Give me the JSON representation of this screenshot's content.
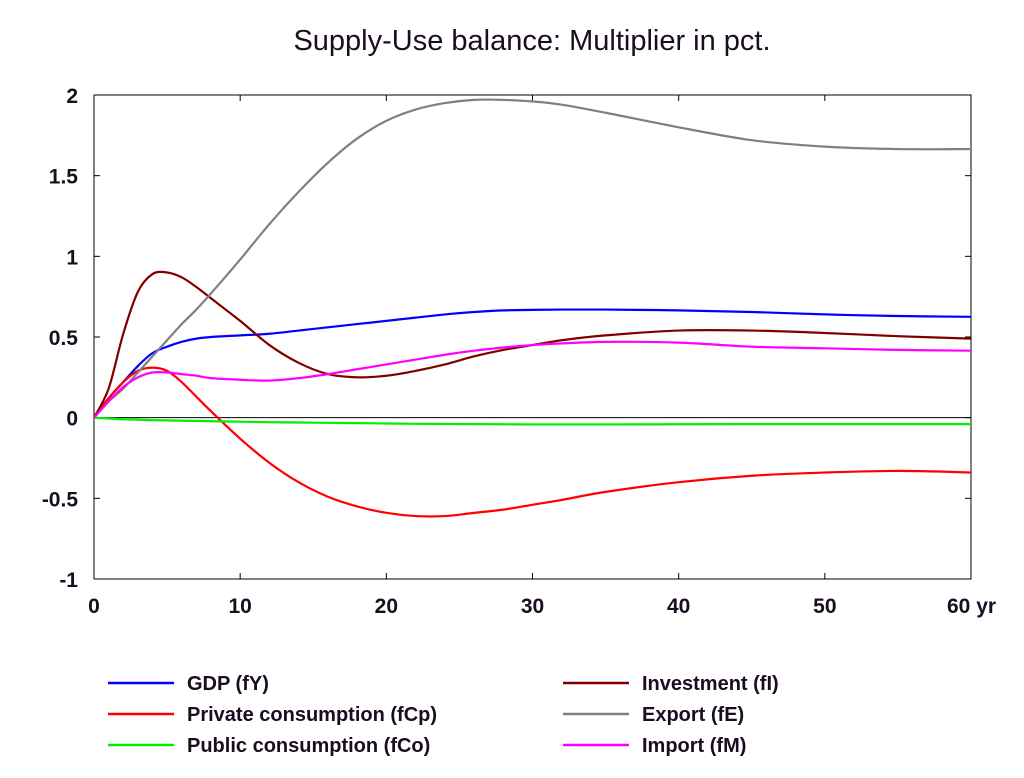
{
  "chart_data": {
    "type": "line",
    "title": "Supply-Use balance: Multiplier in pct.",
    "xlabel": "",
    "ylabel": "",
    "x_unit_label": "yr",
    "xlim": [
      0,
      60
    ],
    "ylim": [
      -1,
      2
    ],
    "x_ticks": [
      0,
      10,
      20,
      30,
      40,
      50,
      60
    ],
    "x_tick_labels": [
      "0",
      "10",
      "20",
      "30",
      "40",
      "50",
      "60 yr"
    ],
    "y_ticks": [
      2,
      1.5,
      1,
      0.5,
      0,
      -0.5,
      -1
    ],
    "y_tick_labels": [
      "2",
      "1.5",
      "1",
      "0.5",
      "0",
      "-0.5",
      "-1"
    ],
    "grid": false,
    "zero_line": true,
    "legend_position": "bottom",
    "x": [
      0,
      1,
      2,
      3,
      4,
      5,
      6,
      7,
      8,
      10,
      12,
      14,
      16,
      18,
      20,
      22,
      24,
      26,
      28,
      30,
      32,
      35,
      40,
      45,
      50,
      55,
      60
    ],
    "series": [
      {
        "name": "GDP (fY)",
        "color": "#0000ff",
        "values": [
          0,
          0.12,
          0.22,
          0.32,
          0.4,
          0.44,
          0.47,
          0.49,
          0.5,
          0.51,
          0.52,
          0.54,
          0.56,
          0.58,
          0.6,
          0.62,
          0.64,
          0.655,
          0.665,
          0.668,
          0.67,
          0.67,
          0.665,
          0.655,
          0.64,
          0.63,
          0.625
        ]
      },
      {
        "name": "Private consumption (fCp)",
        "color": "#ff0000",
        "values": [
          0,
          0.12,
          0.22,
          0.29,
          0.31,
          0.29,
          0.22,
          0.13,
          0.04,
          -0.13,
          -0.28,
          -0.4,
          -0.49,
          -0.55,
          -0.59,
          -0.61,
          -0.61,
          -0.59,
          -0.57,
          -0.54,
          -0.51,
          -0.46,
          -0.4,
          -0.36,
          -0.34,
          -0.33,
          -0.34
        ]
      },
      {
        "name": "Public consumption (fCo)",
        "color": "#00ee00",
        "values": [
          0,
          -0.005,
          -0.01,
          -0.012,
          -0.015,
          -0.017,
          -0.019,
          -0.02,
          -0.022,
          -0.025,
          -0.028,
          -0.03,
          -0.032,
          -0.034,
          -0.036,
          -0.038,
          -0.039,
          -0.04,
          -0.041,
          -0.042,
          -0.042,
          -0.042,
          -0.041,
          -0.04,
          -0.04,
          -0.04,
          -0.04
        ]
      },
      {
        "name": "Investment (fI)",
        "color": "#800000",
        "values": [
          0,
          0.18,
          0.52,
          0.78,
          0.89,
          0.9,
          0.87,
          0.81,
          0.74,
          0.6,
          0.45,
          0.34,
          0.27,
          0.25,
          0.26,
          0.29,
          0.33,
          0.38,
          0.42,
          0.45,
          0.48,
          0.51,
          0.54,
          0.54,
          0.525,
          0.505,
          0.49
        ]
      },
      {
        "name": "Export (fE)",
        "color": "#808080",
        "values": [
          0,
          0.1,
          0.18,
          0.28,
          0.38,
          0.48,
          0.58,
          0.67,
          0.77,
          0.98,
          1.2,
          1.4,
          1.58,
          1.73,
          1.84,
          1.91,
          1.95,
          1.97,
          1.97,
          1.96,
          1.94,
          1.89,
          1.8,
          1.72,
          1.68,
          1.665,
          1.665
        ]
      },
      {
        "name": "Import (fM)",
        "color": "#ff00ff",
        "values": [
          0,
          0.1,
          0.19,
          0.25,
          0.28,
          0.28,
          0.27,
          0.26,
          0.245,
          0.235,
          0.23,
          0.245,
          0.27,
          0.3,
          0.33,
          0.36,
          0.39,
          0.415,
          0.435,
          0.45,
          0.46,
          0.47,
          0.465,
          0.44,
          0.43,
          0.42,
          0.415
        ]
      }
    ]
  }
}
